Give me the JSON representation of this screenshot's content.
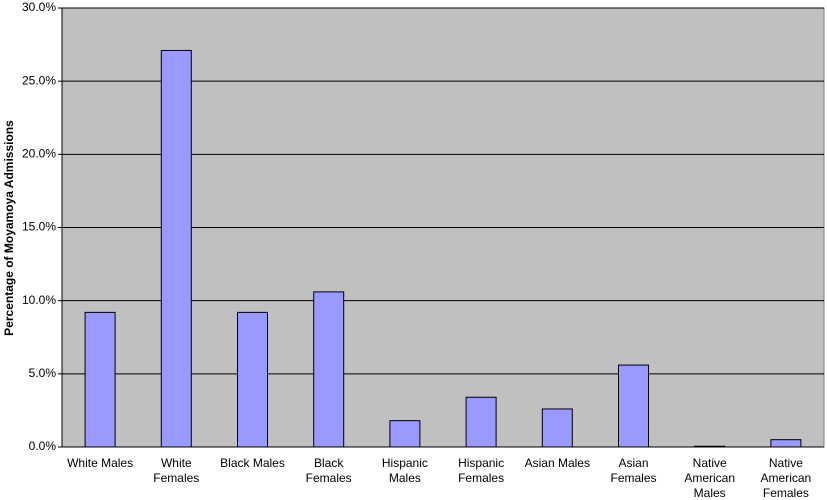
{
  "chart_data": {
    "type": "bar",
    "y_label": "Percentage of Moyamoya Admissions",
    "categories": [
      "White Males",
      "White Females",
      "Black Males",
      "Black Females",
      "Hispanic Males",
      "Hispanic Females",
      "Asian Males",
      "Asian Females",
      "Native American Males",
      "Native American Females"
    ],
    "values": [
      9.2,
      27.1,
      9.2,
      10.6,
      1.8,
      3.4,
      2.6,
      5.6,
      0.05,
      0.5
    ],
    "color": "#9999ff",
    "ylim": [
      0,
      30
    ],
    "yticks": [
      {
        "value": 0,
        "label": "0.0%"
      },
      {
        "value": 5,
        "label": "5.0%"
      },
      {
        "value": 10,
        "label": "10.0%"
      },
      {
        "value": 15,
        "label": "15.0%"
      },
      {
        "value": 20,
        "label": "20.0%"
      },
      {
        "value": 25,
        "label": "25.0%"
      },
      {
        "value": 30,
        "label": "30.0%"
      }
    ],
    "grid": true
  }
}
